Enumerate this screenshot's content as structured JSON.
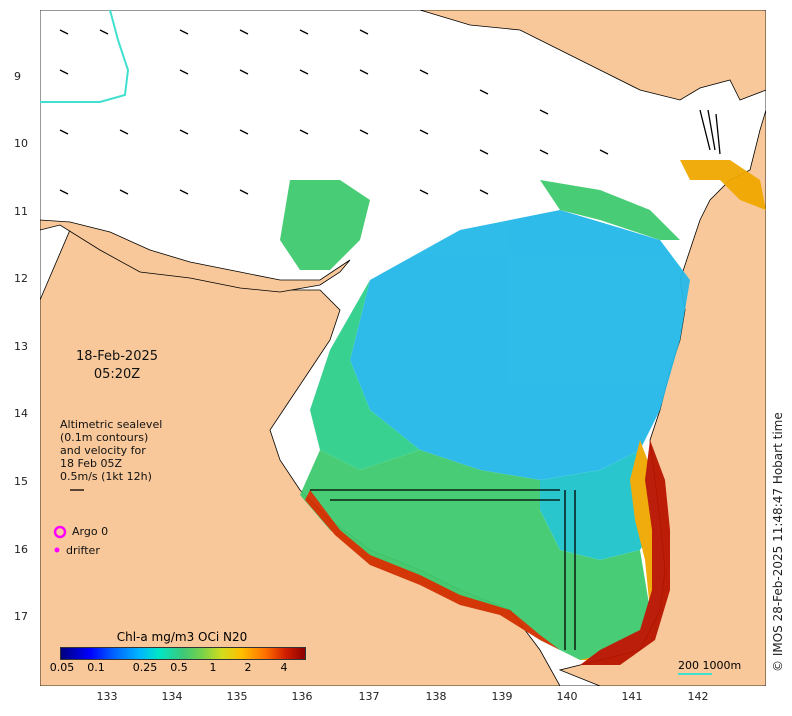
{
  "map": {
    "date": "18-Feb-2025",
    "time": "05:20Z",
    "legend_lines": [
      "Altimetric sealevel",
      "(0.1m contours)",
      "and velocity for",
      "18 Feb 05Z",
      "0.5m/s (1kt 12h)"
    ],
    "argo_label": "Argo 0",
    "drifter_label": "drifter",
    "colorbar_title": "Chl-a mg/m3 OCi N20",
    "colorbar_ticks": [
      "0.05",
      "0.1",
      "0.25",
      "0.5",
      "1",
      "2",
      "4"
    ],
    "scale_label": "200  1000m",
    "credit": "© IMOS 28-Feb-2025 11:48:47 Hobart time",
    "y_ticks": [
      "9",
      "10",
      "11",
      "12",
      "13",
      "14",
      "15",
      "16",
      "17"
    ],
    "x_ticks": [
      "133",
      "134",
      "135",
      "136",
      "137",
      "138",
      "139",
      "140",
      "141",
      "142"
    ],
    "colors": {
      "land": "#f8c89a",
      "ocean": "#ffffff",
      "argo": "#ff00ff",
      "depth_contour": "#40e0d0"
    }
  }
}
